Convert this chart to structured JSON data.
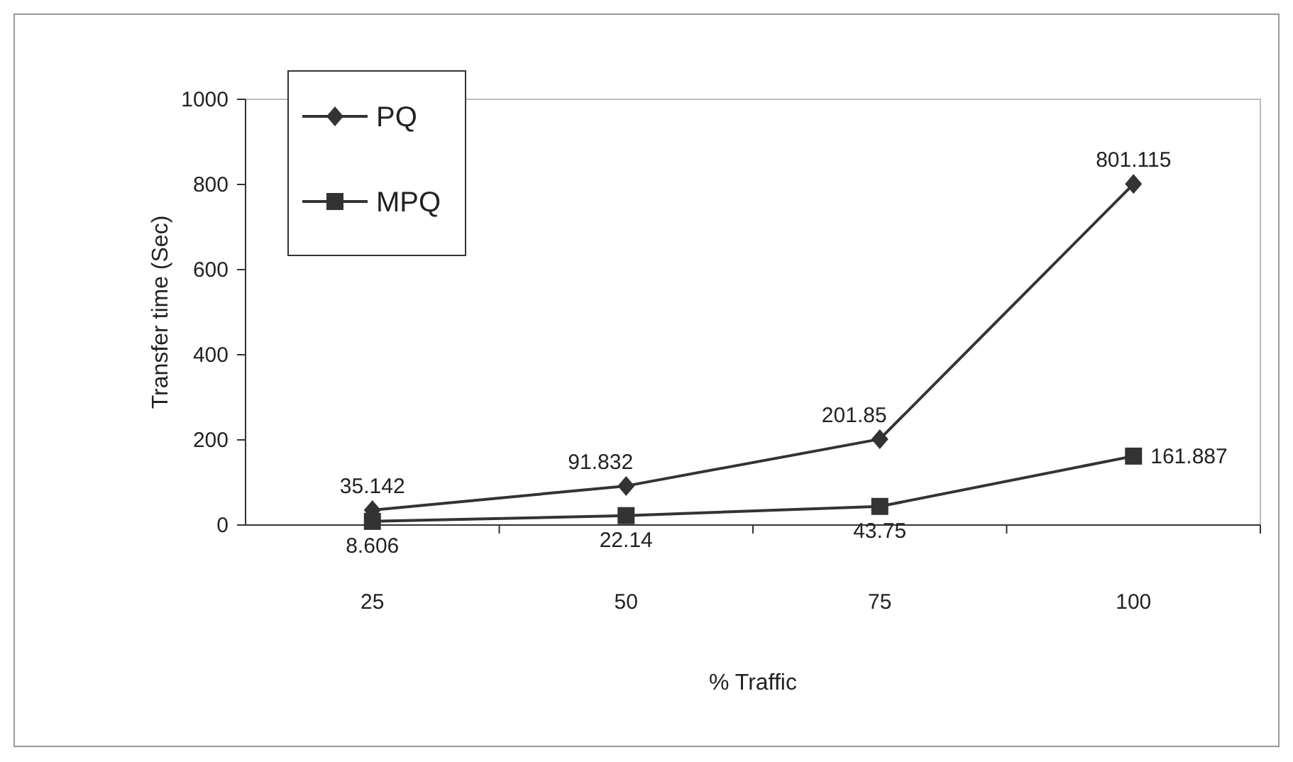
{
  "chart_data": {
    "type": "line",
    "xlabel": "% Traffic",
    "ylabel": "Transfer time (Sec)",
    "categories": [
      "25",
      "50",
      "75",
      "100"
    ],
    "series": [
      {
        "name": "PQ",
        "color": "#333333",
        "marker": "diamond",
        "values": [
          35.142,
          91.832,
          201.85,
          801.115
        ]
      },
      {
        "name": "MPQ",
        "color": "#333333",
        "marker": "square",
        "values": [
          8.606,
          22.14,
          43.75,
          161.887
        ]
      }
    ],
    "ylim": [
      0,
      1000
    ],
    "yticks": [
      0,
      200,
      400,
      600,
      800,
      1000
    ],
    "grid": false,
    "legend": "top left",
    "data_labels": true
  }
}
